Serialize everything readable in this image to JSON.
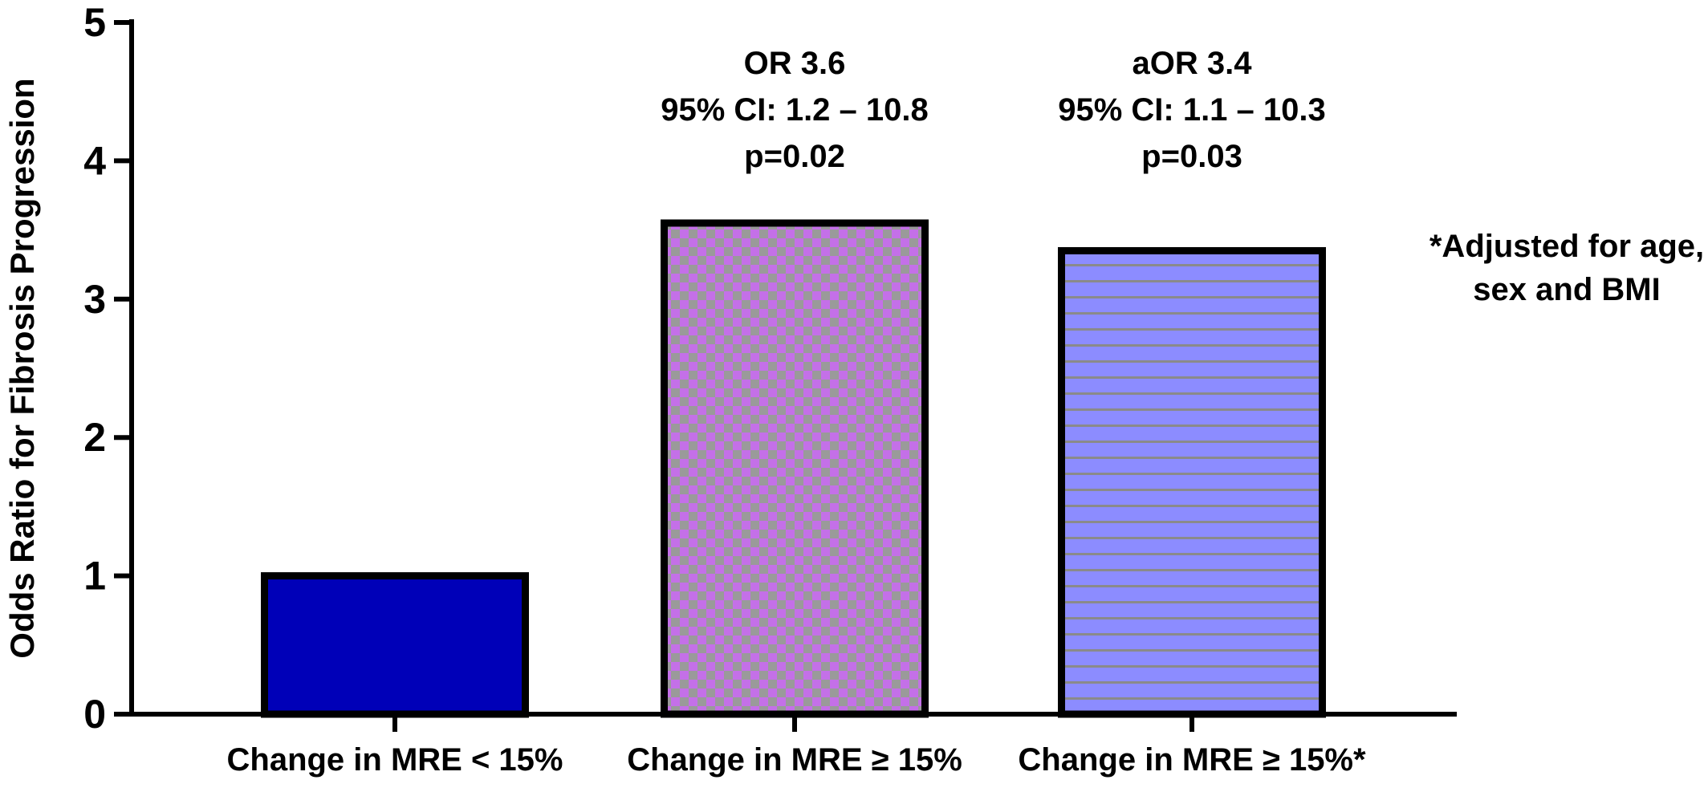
{
  "chart_data": {
    "type": "bar",
    "title": "",
    "xlabel": "",
    "ylabel": "Odds Ratio for Fibrosis Progression",
    "ylim": [
      0,
      5
    ],
    "yticks": [
      "0",
      "1",
      "2",
      "3",
      "4",
      "5"
    ],
    "grid": false,
    "categories": [
      "Change in MRE < 15%",
      "Change in MRE ≥ 15%",
      "Change in MRE ≥ 15%*"
    ],
    "values": [
      1.0,
      3.55,
      3.35
    ],
    "bar_styles": [
      {
        "fill": "#0000b8",
        "pattern": "solid"
      },
      {
        "fill": "#c470e8",
        "pattern": "checker",
        "pattern_color": "#9a9a9a"
      },
      {
        "fill": "#8c8cff",
        "pattern": "horizontal-lines",
        "pattern_color": "#8a8a8a"
      }
    ],
    "annotations": [
      {
        "category_index": 1,
        "lines": [
          "OR 3.6",
          "95% CI: 1.2 – 10.8",
          "p=0.02"
        ]
      },
      {
        "category_index": 2,
        "lines": [
          "aOR 3.4",
          "95% CI: 1.1 – 10.3",
          "p=0.03"
        ]
      }
    ],
    "footnote": [
      "*Adjusted for age,",
      "sex and BMI"
    ]
  }
}
